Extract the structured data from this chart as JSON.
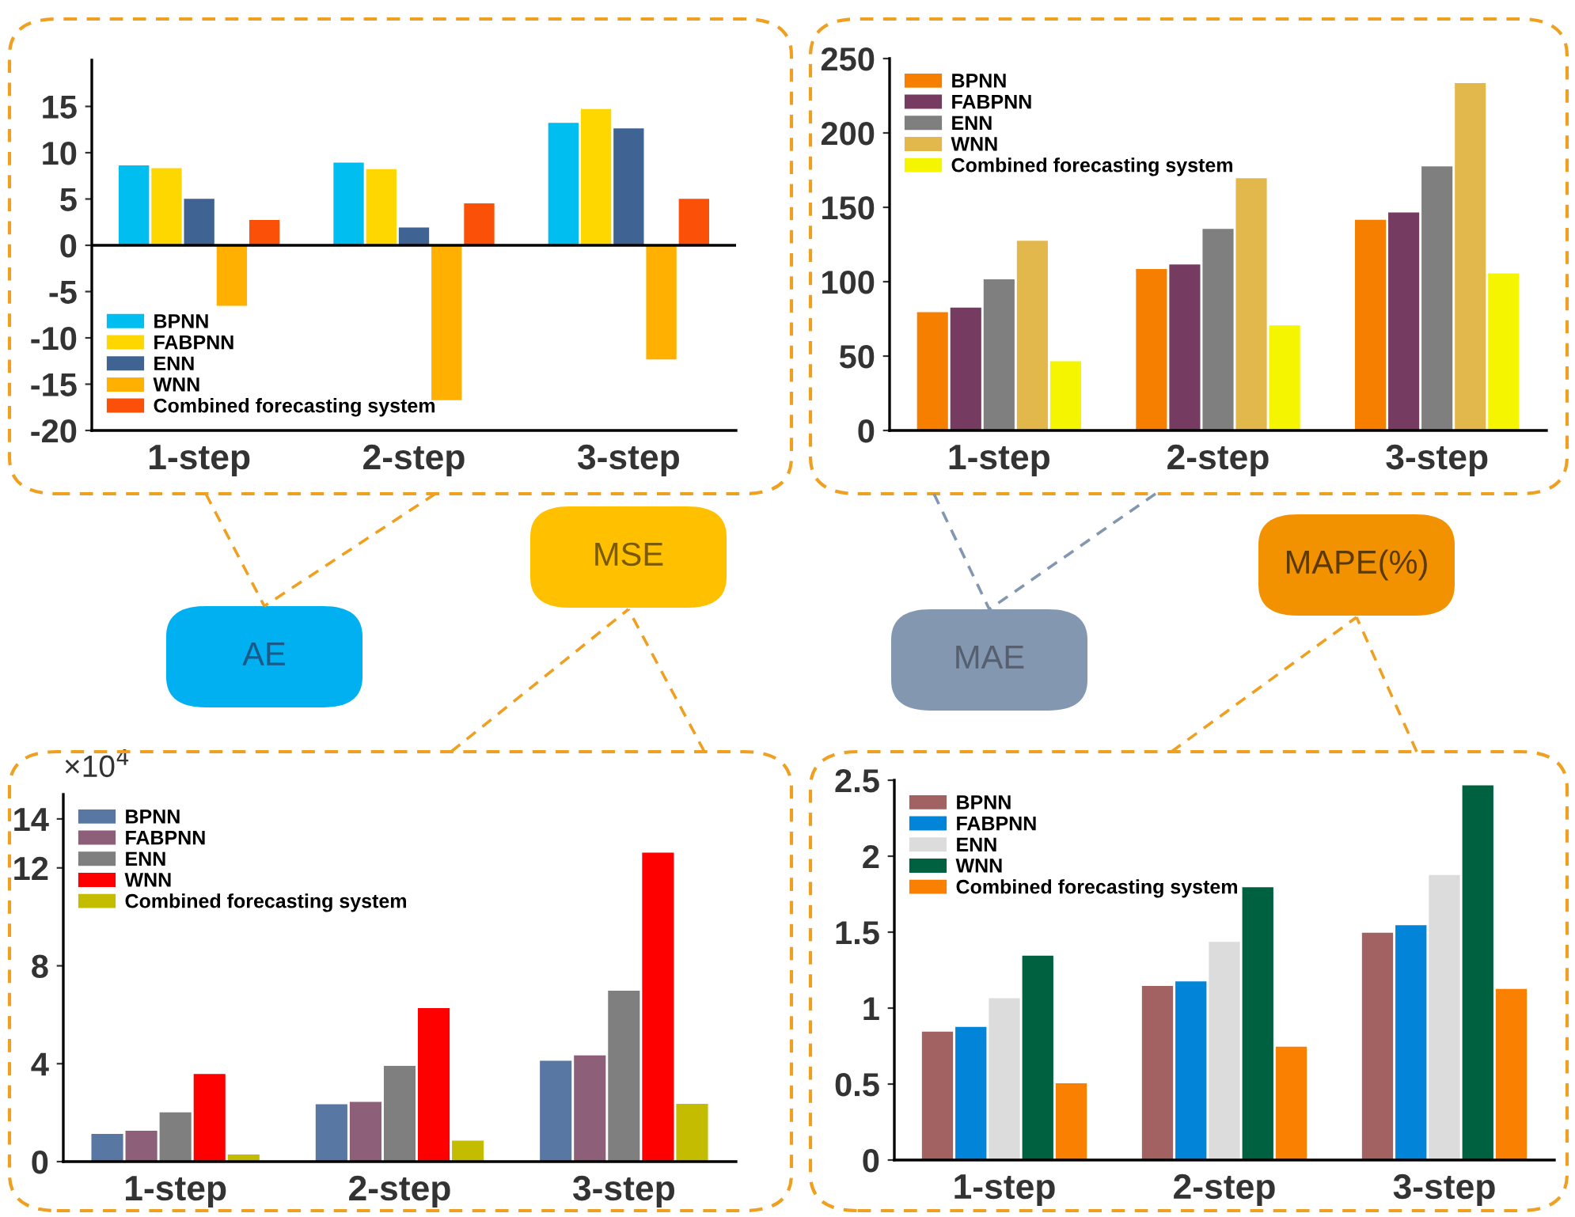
{
  "chart_data": [
    {
      "type": "bar",
      "title": "AE",
      "categories": [
        "1-step",
        "2-step",
        "3-step"
      ],
      "ylim": [
        -20,
        20
      ],
      "yticks": [
        -20,
        -15,
        -10,
        -5,
        0,
        5,
        10,
        15
      ],
      "legend": "bottom left",
      "grid": false,
      "ref_lines": [
        {
          "axis": "y",
          "value": 0
        }
      ],
      "series": [
        {
          "name": "BPNN",
          "color": "#00bff0",
          "values": [
            8.7,
            9.0,
            13.3
          ]
        },
        {
          "name": "FABPNN",
          "color": "#ffd700",
          "values": [
            8.4,
            8.3,
            14.8
          ]
        },
        {
          "name": "ENN",
          "color": "#3f6393",
          "values": [
            5.1,
            2.0,
            12.7
          ]
        },
        {
          "name": "WNN",
          "color": "#ffb000",
          "values": [
            -6.6,
            -16.8,
            -12.4
          ]
        },
        {
          "name": "Combined forecasting system",
          "color": "#fa5008",
          "values": [
            2.8,
            4.6,
            5.1
          ]
        }
      ]
    },
    {
      "type": "bar",
      "title": "MAE",
      "categories": [
        "1-step",
        "2-step",
        "3-step"
      ],
      "ylim": [
        0,
        250
      ],
      "yticks": [
        0,
        50,
        100,
        150,
        200,
        250
      ],
      "legend": "top left",
      "grid": false,
      "series": [
        {
          "name": "BPNN",
          "color": "#f77f00",
          "values": [
            80,
            109,
            142
          ]
        },
        {
          "name": "FABPNN",
          "color": "#763b60",
          "values": [
            83,
            112,
            147
          ]
        },
        {
          "name": "ENN",
          "color": "#7f7f7f",
          "values": [
            102,
            136,
            178
          ]
        },
        {
          "name": "WNN",
          "color": "#e2b84c",
          "values": [
            128,
            170,
            234
          ]
        },
        {
          "name": "Combined forecasting system",
          "color": "#f5f500",
          "values": [
            47,
            71,
            106
          ]
        }
      ]
    },
    {
      "type": "bar",
      "title": "MSE",
      "annotations": [
        "×10$^{4}$"
      ],
      "categories": [
        "1-step",
        "2-step",
        "3-step"
      ],
      "ylim": [
        0,
        15
      ],
      "yticks": [
        0,
        4,
        8,
        12,
        14
      ],
      "legend": "top left",
      "grid": false,
      "series": [
        {
          "name": "BPNN",
          "color": "#5878a3",
          "values": [
            1.16,
            2.37,
            4.15
          ]
        },
        {
          "name": "FABPNN",
          "color": "#8e5f79",
          "values": [
            1.29,
            2.47,
            4.37
          ]
        },
        {
          "name": "ENN",
          "color": "#7f7f7f",
          "values": [
            2.04,
            3.94,
            7.01
          ]
        },
        {
          "name": "WNN",
          "color": "#ff0000",
          "values": [
            3.61,
            6.3,
            12.65
          ]
        },
        {
          "name": "Combined forecasting system",
          "color": "#c3bc00",
          "values": [
            0.32,
            0.88,
            2.39
          ]
        }
      ]
    },
    {
      "type": "bar",
      "title": "MAPE(%)",
      "categories": [
        "1-step",
        "2-step",
        "3-step"
      ],
      "ylim": [
        0,
        2.5
      ],
      "yticks": [
        0,
        0.5,
        1,
        1.5,
        2,
        2.5
      ],
      "legend": "top left",
      "grid": false,
      "series": [
        {
          "name": "BPNN",
          "color": "#a36262",
          "values": [
            0.85,
            1.15,
            1.5
          ]
        },
        {
          "name": "FABPNN",
          "color": "#0284d8",
          "values": [
            0.88,
            1.18,
            1.55
          ]
        },
        {
          "name": "ENN",
          "color": "#dcdcdc",
          "values": [
            1.07,
            1.44,
            1.88
          ]
        },
        {
          "name": "WNN",
          "color": "#006141",
          "values": [
            1.35,
            1.8,
            2.47
          ]
        },
        {
          "name": "Combined forecasting system",
          "color": "#f98000",
          "values": [
            0.51,
            0.75,
            1.13
          ]
        }
      ]
    }
  ]
}
